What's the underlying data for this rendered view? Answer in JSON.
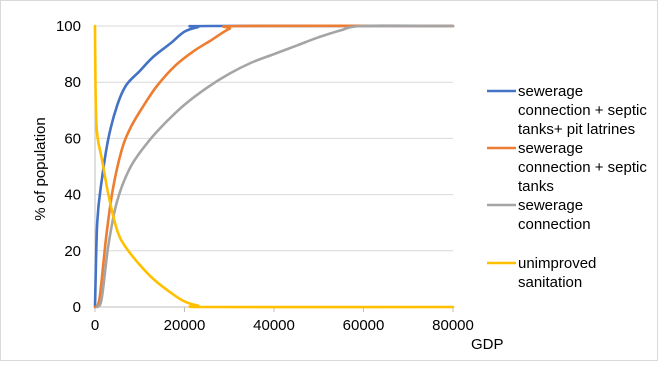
{
  "chart_data": {
    "type": "line",
    "title": "",
    "xlabel": "GDP",
    "ylabel": "% of population",
    "xlim": [
      0,
      80000
    ],
    "ylim": [
      0,
      100
    ],
    "x_ticks": [
      "0",
      "20000",
      "40000",
      "60000",
      "80000"
    ],
    "y_ticks": [
      "0",
      "20",
      "40",
      "60",
      "80",
      "100"
    ],
    "grid": "horizontal",
    "legend_position": "right",
    "series": [
      {
        "name": "sewerage connection + septic tanks+ pit latrines",
        "color": "#4472c4",
        "legend_lines": [
          "sewerage",
          "connection + septic",
          "tanks+ pit latrines"
        ],
        "points": [
          [
            0,
            0
          ],
          [
            500,
            30
          ],
          [
            1500,
            45
          ],
          [
            3000,
            60
          ],
          [
            5000,
            72
          ],
          [
            7000,
            79
          ],
          [
            10000,
            84
          ],
          [
            13000,
            89
          ],
          [
            17000,
            94
          ],
          [
            20000,
            98
          ],
          [
            23000,
            99.6
          ],
          [
            26000,
            100
          ],
          [
            80000,
            100
          ]
        ]
      },
      {
        "name": "sewerage connection + septic tanks",
        "color": "#ed7d31",
        "legend_lines": [
          "sewerage",
          "connection + septic",
          "tanks"
        ],
        "points": [
          [
            0,
            0
          ],
          [
            1000,
            3
          ],
          [
            2500,
            25
          ],
          [
            4000,
            42
          ],
          [
            6000,
            56
          ],
          [
            8000,
            64
          ],
          [
            11000,
            72
          ],
          [
            14000,
            79
          ],
          [
            18000,
            86
          ],
          [
            22000,
            91
          ],
          [
            26000,
            95
          ],
          [
            30000,
            99
          ],
          [
            33000,
            100
          ],
          [
            80000,
            100
          ]
        ]
      },
      {
        "name": "sewerage connection",
        "color": "#a5a5a5",
        "legend_lines": [
          "sewerage",
          "connection"
        ],
        "points": [
          [
            500,
            0
          ],
          [
            1500,
            3
          ],
          [
            3000,
            22
          ],
          [
            5000,
            38
          ],
          [
            8000,
            50
          ],
          [
            12000,
            59
          ],
          [
            16000,
            66
          ],
          [
            20000,
            72
          ],
          [
            25000,
            78
          ],
          [
            30000,
            83
          ],
          [
            35000,
            87
          ],
          [
            40000,
            90
          ],
          [
            45000,
            93
          ],
          [
            50000,
            96
          ],
          [
            55000,
            98.5
          ],
          [
            60000,
            100
          ],
          [
            80000,
            100
          ]
        ]
      },
      {
        "name": "unimproved sanitation",
        "color": "#ffc000",
        "legend_lines": [
          "unimproved",
          "sanitation"
        ],
        "points": [
          [
            0,
            100
          ],
          [
            200,
            70
          ],
          [
            600,
            60
          ],
          [
            1500,
            53
          ],
          [
            3000,
            40
          ],
          [
            5000,
            27
          ],
          [
            7000,
            21
          ],
          [
            10000,
            15
          ],
          [
            13000,
            10
          ],
          [
            17000,
            5
          ],
          [
            20000,
            2
          ],
          [
            23000,
            0.5
          ],
          [
            26000,
            0
          ],
          [
            80000,
            0
          ]
        ]
      }
    ]
  }
}
